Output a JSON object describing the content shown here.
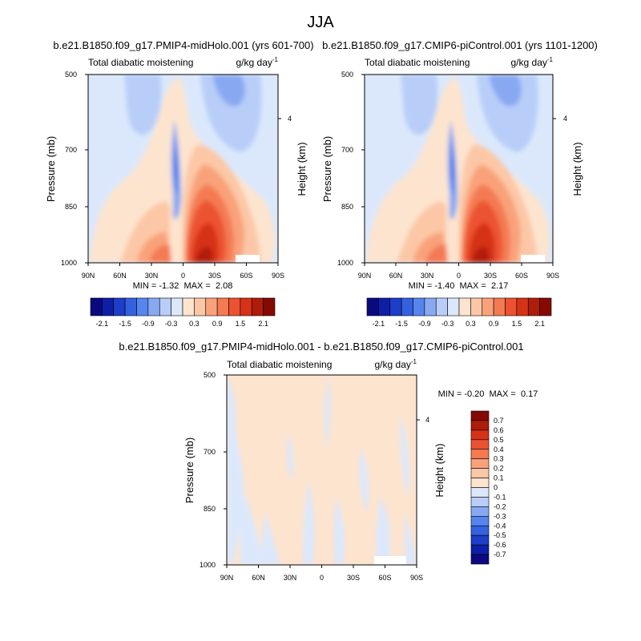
{
  "figure_title": "JJA",
  "common": {
    "subtitle_left": "Total diabatic moistening",
    "units": "g/kg day",
    "units_exp": "-1",
    "ylabel_left": "Pressure (mb)",
    "ylabel_right": "Height (km)",
    "yticks": [
      "500",
      "700",
      "850",
      "1000"
    ],
    "xticks": [
      "90N",
      "60N",
      "30N",
      "0",
      "30S",
      "60S",
      "90S"
    ],
    "right_tick": "4",
    "min_label": "MIN =",
    "max_label": "MAX ="
  },
  "panels": [
    {
      "title": "b.e21.B1850.f09_g17.PMIP4-midHolo.001 (yrs 601-700)",
      "min": "-1.32",
      "max": "2.08"
    },
    {
      "title": "b.e21.B1850.f09_g17.CMIP6-piControl.001 (yrs 1101-1200)",
      "min": "-1.40",
      "max": "2.17"
    },
    {
      "title": "b.e21.B1850.f09_g17.PMIP4-midHolo.001 - b.e21.B1850.f09_g17.CMIP6-piControl.001",
      "min": "-0.20",
      "max": "0.17"
    }
  ],
  "colorbar_top": {
    "colors": [
      "#0a0a80",
      "#0d1fa6",
      "#1c3ec8",
      "#3461e0",
      "#5685ee",
      "#88a8f2",
      "#b8cef8",
      "#dbe8fc",
      "#fde4cf",
      "#fcc7a6",
      "#f9a27a",
      "#f47a52",
      "#ec5232",
      "#d63218",
      "#b01c0a",
      "#850a02"
    ],
    "labels": [
      "-2.1",
      "-1.5",
      "-0.9",
      "-0.3",
      "0.3",
      "0.9",
      "1.5",
      "2.1"
    ]
  },
  "colorbar_diff": {
    "colors": [
      "#0a0a80",
      "#0d1fa6",
      "#1c3ec8",
      "#3461e0",
      "#5685ee",
      "#88a8f2",
      "#b8cef8",
      "#dbe8fc",
      "#fde4cf",
      "#fcc7a6",
      "#f9a27a",
      "#f47a52",
      "#ec5232",
      "#d63218",
      "#b01c0a",
      "#850a02"
    ],
    "labels": [
      "0.7",
      "0.6",
      "0.5",
      "0.4",
      "0.3",
      "0.2",
      "0.1",
      "0",
      "-0.1",
      "-0.2",
      "-0.3",
      "-0.4",
      "-0.5",
      "-0.6",
      "-0.7"
    ]
  },
  "chart_data": [
    {
      "type": "heatmap",
      "title": "b.e21.B1850.f09_g17.PMIP4-midHolo.001 (yrs 601-700)",
      "subtitle": "Total diabatic moistening",
      "units": "g/kg day-1",
      "xlabel": "",
      "ylabel": "Pressure (mb)",
      "ylabel_right": "Height (km)",
      "x_ticks": [
        "90N",
        "60N",
        "30N",
        "0",
        "30S",
        "60S",
        "90S"
      ],
      "y_ticks": [
        500,
        700,
        850,
        1000
      ],
      "xlim": [
        90,
        -90
      ],
      "ylim": [
        1000,
        500
      ],
      "min": -1.32,
      "max": 2.08,
      "contour_levels": [
        -2.1,
        -1.8,
        -1.5,
        -1.2,
        -0.9,
        -0.6,
        -0.3,
        0,
        0.3,
        0.6,
        0.9,
        1.2,
        1.5,
        1.8,
        2.1
      ]
    },
    {
      "type": "heatmap",
      "title": "b.e21.B1850.f09_g17.CMIP6-piControl.001 (yrs 1101-1200)",
      "subtitle": "Total diabatic moistening",
      "units": "g/kg day-1",
      "xlabel": "",
      "ylabel": "Pressure (mb)",
      "ylabel_right": "Height (km)",
      "x_ticks": [
        "90N",
        "60N",
        "30N",
        "0",
        "30S",
        "60S",
        "90S"
      ],
      "y_ticks": [
        500,
        700,
        850,
        1000
      ],
      "xlim": [
        90,
        -90
      ],
      "ylim": [
        1000,
        500
      ],
      "min": -1.4,
      "max": 2.17,
      "contour_levels": [
        -2.1,
        -1.8,
        -1.5,
        -1.2,
        -0.9,
        -0.6,
        -0.3,
        0,
        0.3,
        0.6,
        0.9,
        1.2,
        1.5,
        1.8,
        2.1
      ]
    },
    {
      "type": "heatmap",
      "title": "b.e21.B1850.f09_g17.PMIP4-midHolo.001 - b.e21.B1850.f09_g17.CMIP6-piControl.001",
      "subtitle": "Total diabatic moistening",
      "units": "g/kg day-1",
      "xlabel": "",
      "ylabel": "Pressure (mb)",
      "ylabel_right": "Height (km)",
      "x_ticks": [
        "90N",
        "60N",
        "30N",
        "0",
        "30S",
        "60S",
        "90S"
      ],
      "y_ticks": [
        500,
        700,
        850,
        1000
      ],
      "xlim": [
        90,
        -90
      ],
      "ylim": [
        1000,
        500
      ],
      "min": -0.2,
      "max": 0.17,
      "contour_levels": [
        -0.7,
        -0.6,
        -0.5,
        -0.4,
        -0.3,
        -0.2,
        -0.1,
        0,
        0.1,
        0.2,
        0.3,
        0.4,
        0.5,
        0.6,
        0.7
      ]
    }
  ]
}
